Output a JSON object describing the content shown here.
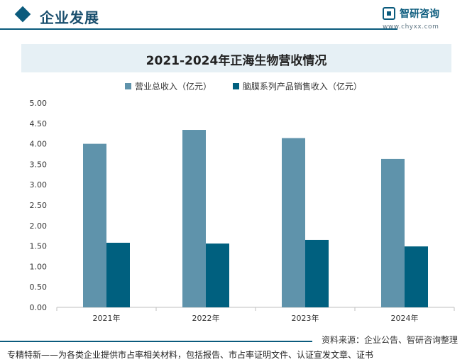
{
  "header": {
    "title": "企业发展",
    "brand_name": "智研咨询",
    "brand_url": "www.chyxx.com"
  },
  "colors": {
    "accent": "#0b5b7d",
    "series_revenue": "#5f93ab",
    "series_product": "#00607f",
    "banner": "#e6f0f5"
  },
  "chart_data": {
    "type": "bar",
    "title": "2021-2024年正海生物营收情况",
    "categories": [
      "2021年",
      "2022年",
      "2023年",
      "2024年"
    ],
    "series": [
      {
        "name": "营业总收入（亿元）",
        "values": [
          4.0,
          4.34,
          4.14,
          3.63
        ]
      },
      {
        "name": "脑膜系列产品销售收入（亿元）",
        "values": [
          1.58,
          1.56,
          1.65,
          1.49
        ]
      }
    ],
    "yticks": [
      "0.00",
      "0.50",
      "1.00",
      "1.50",
      "2.00",
      "2.50",
      "3.00",
      "3.50",
      "4.00",
      "4.50",
      "5.00"
    ],
    "ylim": [
      0,
      5
    ],
    "grid": false,
    "legend_position": "top"
  },
  "footer": {
    "source": "资料来源：企业公告、智研咨询整理",
    "tagline": "专精特新——为各类企业提供市占率相关材料，包括报告、市占率证明文件、认证宣发文章、证书"
  }
}
